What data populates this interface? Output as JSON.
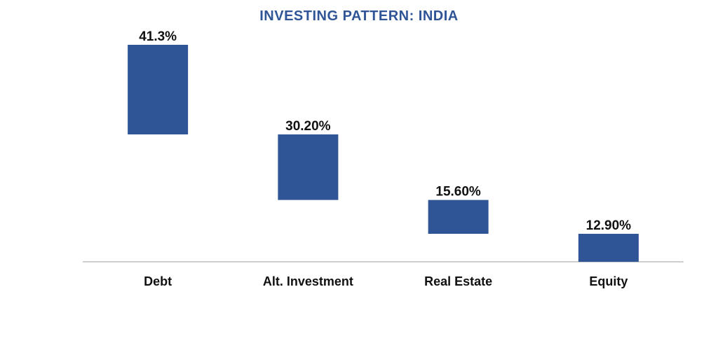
{
  "chart_data": {
    "type": "bar",
    "subtype": "waterfall-descending",
    "title": "INVESTING PATTERN: INDIA",
    "categories": [
      "Debt",
      "Alt. Investment",
      "Real Estate",
      "Equity"
    ],
    "values": [
      41.3,
      30.2,
      15.6,
      12.9
    ],
    "value_labels": [
      "41.3%",
      "30.20%",
      "15.60%",
      "12.90%"
    ],
    "total": 100,
    "xlabel": "",
    "ylabel": "",
    "ylim": [
      0,
      100
    ],
    "grid": false,
    "legend": "none",
    "colors": {
      "bar": "#2F5597",
      "title": "#2F5597",
      "axis": "#BFBFBF"
    }
  }
}
